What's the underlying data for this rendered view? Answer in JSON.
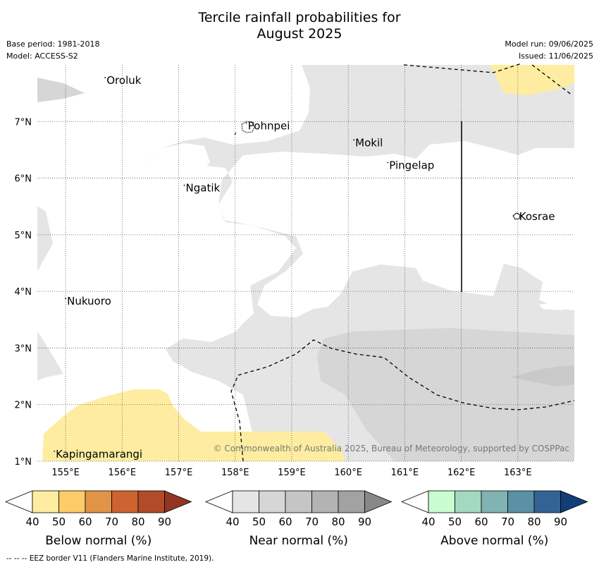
{
  "title_line1": "Tercile rainfall probabilities for",
  "title_line2": "August 2025",
  "base_period": "Base period: 1981-2018",
  "model": "Model: ACCESS-S2",
  "model_run": "Model run: 09/06/2025",
  "issued": "Issued: 11/06/2025",
  "copyright": "© Commonwealth of Australia 2025, Bureau of Meteorology, supported by COSPPac",
  "footer": "--  --  -- EEZ border V11 (Flanders Marine Institute, 2019).",
  "lon_ticks": [
    "155°E",
    "156°E",
    "157°E",
    "158°E",
    "159°E",
    "160°E",
    "161°E",
    "162°E",
    "163°E"
  ],
  "lat_ticks": [
    "7°N",
    "6°N",
    "5°N",
    "4°N",
    "3°N",
    "2°N",
    "1°N"
  ],
  "places": [
    {
      "name": "Oroluk",
      "lon": 155.7,
      "lat": 7.7
    },
    {
      "name": "Pohnpei",
      "lon": 158.2,
      "lat": 6.9
    },
    {
      "name": "Mokil",
      "lon": 160.1,
      "lat": 6.6
    },
    {
      "name": "Pingelap",
      "lon": 160.7,
      "lat": 6.2
    },
    {
      "name": "Ngatik",
      "lon": 157.1,
      "lat": 5.8
    },
    {
      "name": "Kosrae",
      "lon": 163.0,
      "lat": 5.3
    },
    {
      "name": "Nukuoro",
      "lon": 155.0,
      "lat": 3.8
    },
    {
      "name": "Kapingamarangi",
      "lon": 154.8,
      "lat": 1.1
    }
  ],
  "legends": [
    {
      "label": "Below normal (%)",
      "ticks": [
        "40",
        "50",
        "60",
        "70",
        "80",
        "90"
      ],
      "colors": [
        "#ffffff",
        "#feeda0",
        "#fdcc69",
        "#e19446",
        "#cc6331",
        "#b14b28",
        "#943422"
      ]
    },
    {
      "label": "Near normal (%)",
      "ticks": [
        "40",
        "50",
        "60",
        "70",
        "80",
        "90"
      ],
      "colors": [
        "#ffffff",
        "#e5e5e5",
        "#d6d6d6",
        "#c5c5c5",
        "#b3b3b3",
        "#a2a2a2",
        "#888888"
      ]
    },
    {
      "label": "Above normal (%)",
      "ticks": [
        "40",
        "50",
        "60",
        "70",
        "80",
        "90"
      ],
      "colors": [
        "#ffffff",
        "#c9fcd0",
        "#a2d9c0",
        "#80b3b1",
        "#5a91a4",
        "#336394",
        "#123e78"
      ]
    }
  ]
}
